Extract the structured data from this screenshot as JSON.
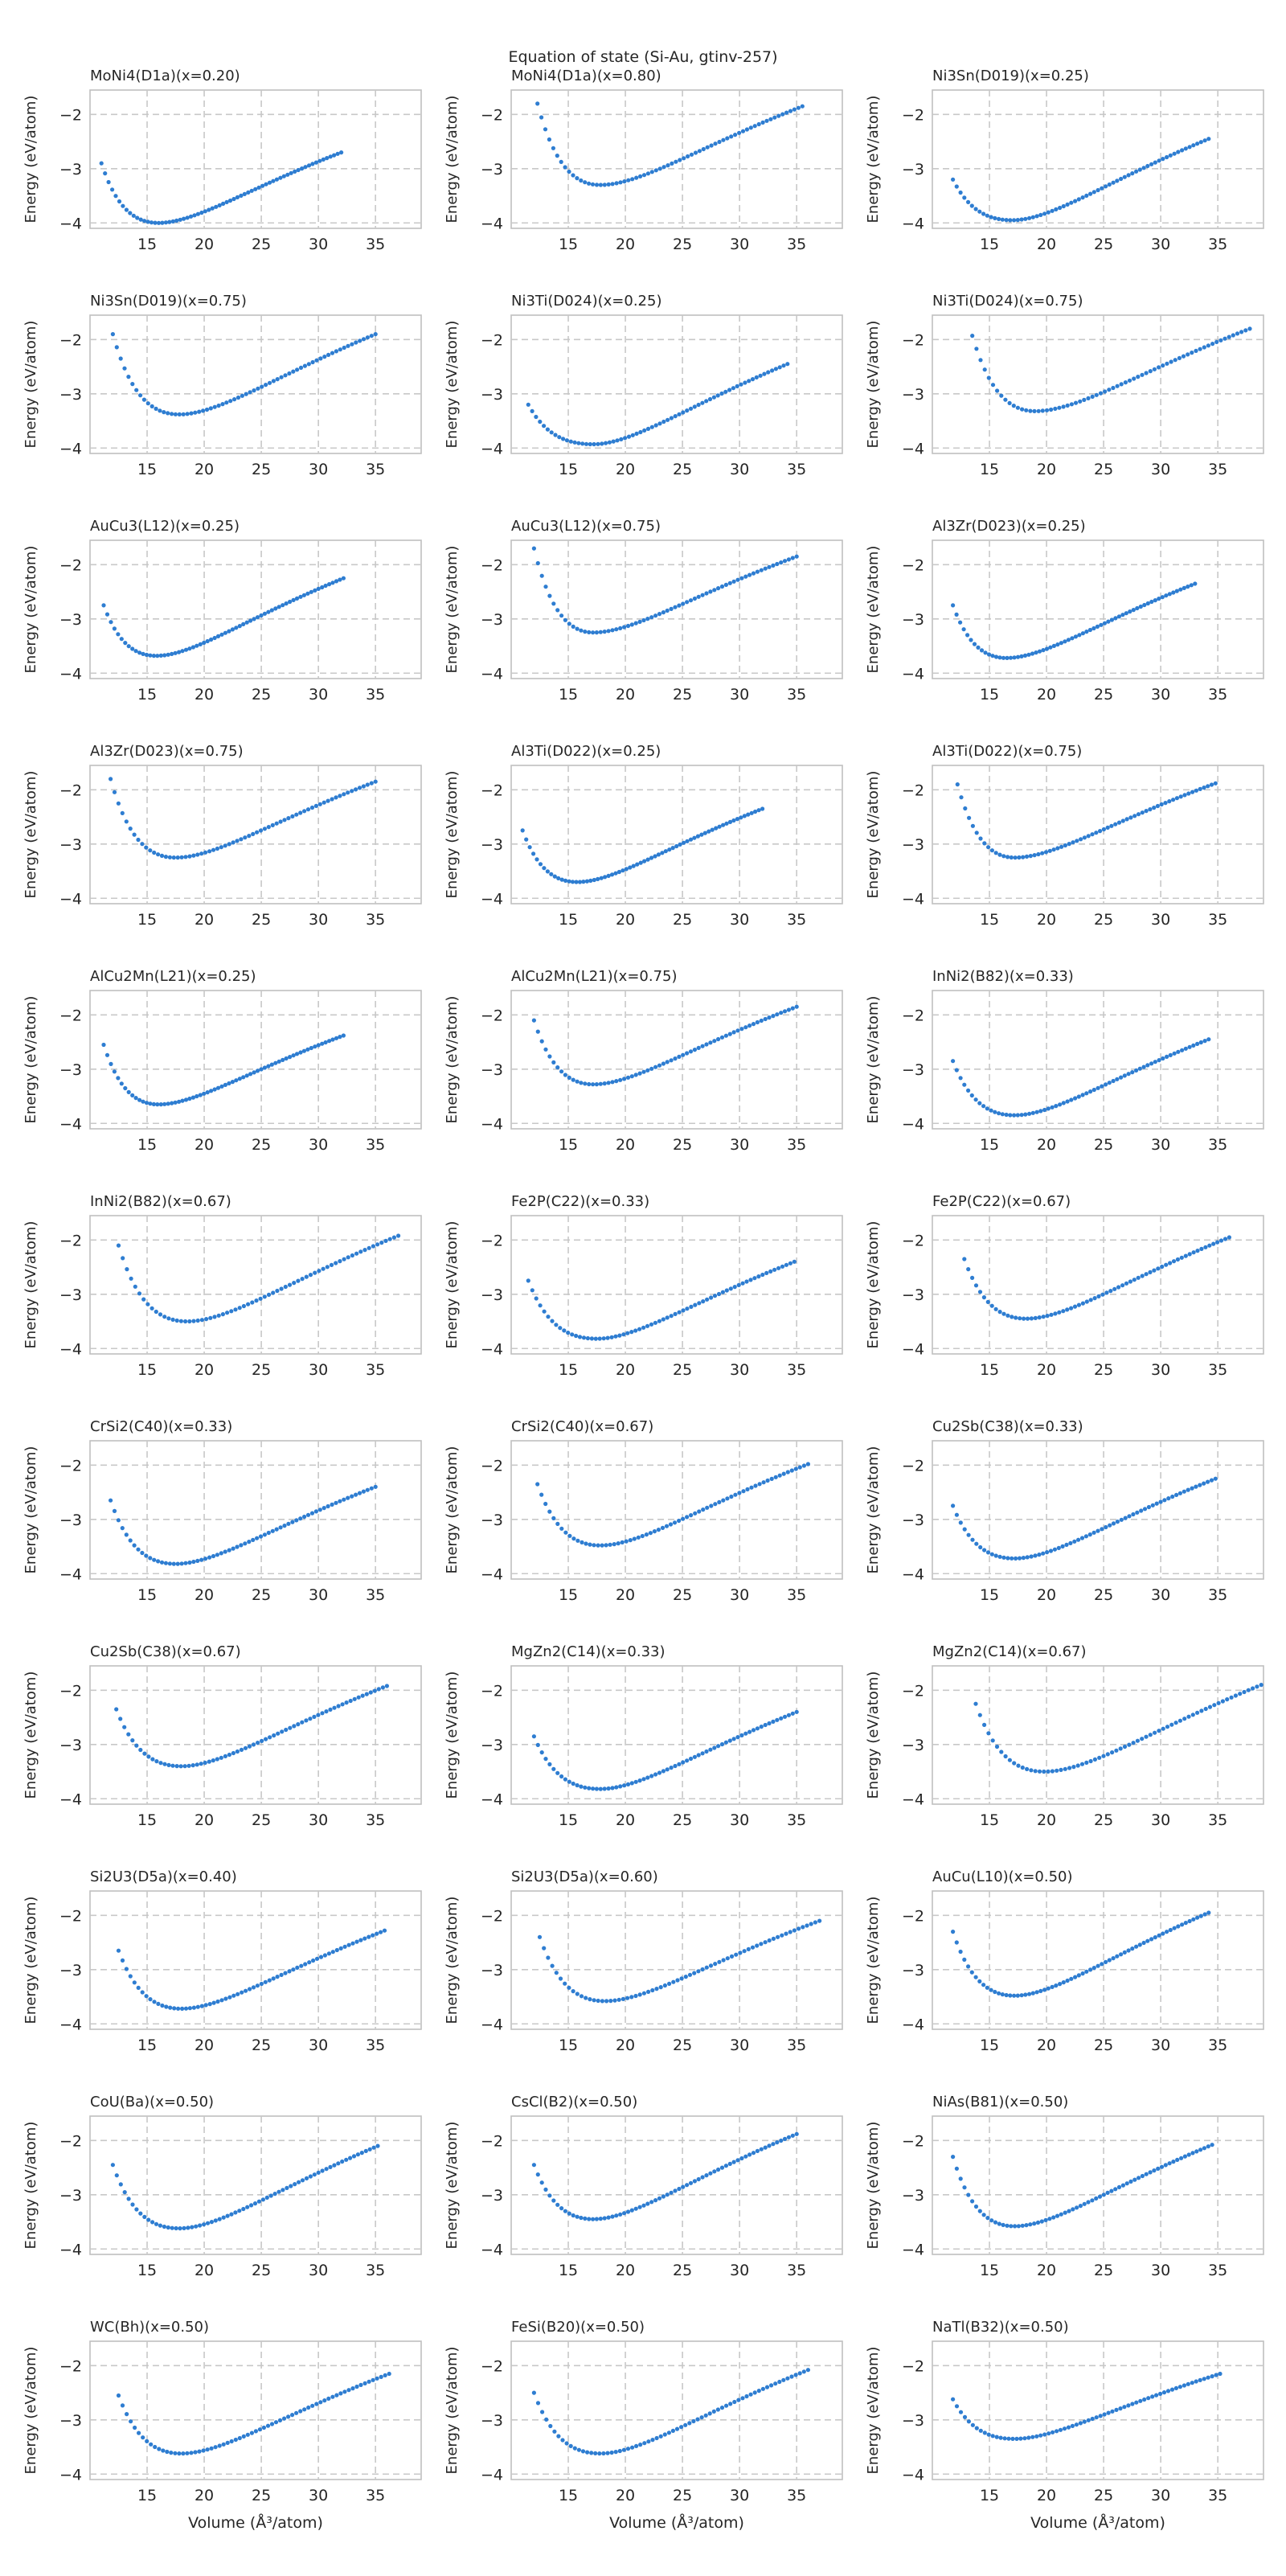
{
  "suptitle": "Equation of state (Si-Au, gtinv-257)",
  "chart_data": {
    "type": "scatter",
    "layout": {
      "rows": 11,
      "cols": 3
    },
    "xlabel": "Volume (Å³/atom)",
    "ylabel": "Energy (eV/atom)",
    "xlim": [
      10,
      39
    ],
    "ylim": [
      -4.1,
      -1.55
    ],
    "xticks": [
      15,
      20,
      25,
      30,
      35
    ],
    "yticks": [
      -4,
      -3,
      -2
    ],
    "grid": true,
    "marker_color": "#2e7dd1",
    "grid_color": "#c8c8c8",
    "axes_edge_color": "#c0c0c0",
    "panels": [
      {
        "title": "MoNi4(D1a)(x=0.20)",
        "v_min": 11.0,
        "v0": 16.0,
        "v_max": 32.0,
        "e0": -4.0,
        "e_left": -2.9,
        "e_right": -2.7
      },
      {
        "title": "MoNi4(D1a)(x=0.80)",
        "v_min": 12.3,
        "v0": 17.8,
        "v_max": 35.5,
        "e0": -3.3,
        "e_left": -1.8,
        "e_right": -1.85
      },
      {
        "title": "Ni3Sn(D019)(x=0.25)",
        "v_min": 11.8,
        "v0": 17.0,
        "v_max": 34.2,
        "e0": -3.95,
        "e_left": -3.2,
        "e_right": -2.45
      },
      {
        "title": "Ni3Sn(D019)(x=0.75)",
        "v_min": 12.0,
        "v0": 17.8,
        "v_max": 35.0,
        "e0": -3.38,
        "e_left": -1.9,
        "e_right": -1.9
      },
      {
        "title": "Ni3Ti(D024)(x=0.25)",
        "v_min": 11.5,
        "v0": 17.2,
        "v_max": 34.2,
        "e0": -3.93,
        "e_left": -3.2,
        "e_right": -2.45
      },
      {
        "title": "Ni3Ti(D024)(x=0.75)",
        "v_min": 13.5,
        "v0": 19.0,
        "v_max": 37.8,
        "e0": -3.32,
        "e_left": -1.93,
        "e_right": -1.8
      },
      {
        "title": "AuCu3(L12)(x=0.25)",
        "v_min": 11.2,
        "v0": 15.8,
        "v_max": 32.2,
        "e0": -3.68,
        "e_left": -2.75,
        "e_right": -2.25
      },
      {
        "title": "AuCu3(L12)(x=0.75)",
        "v_min": 12.0,
        "v0": 17.2,
        "v_max": 35.0,
        "e0": -3.25,
        "e_left": -1.7,
        "e_right": -1.85
      },
      {
        "title": "Al3Zr(D023)(x=0.25)",
        "v_min": 11.8,
        "v0": 16.5,
        "v_max": 33.0,
        "e0": -3.72,
        "e_left": -2.75,
        "e_right": -2.35
      },
      {
        "title": "Al3Zr(D023)(x=0.75)",
        "v_min": 11.8,
        "v0": 17.5,
        "v_max": 35.0,
        "e0": -3.25,
        "e_left": -1.8,
        "e_right": -1.85
      },
      {
        "title": "Al3Ti(D022)(x=0.25)",
        "v_min": 11.0,
        "v0": 15.8,
        "v_max": 32.0,
        "e0": -3.7,
        "e_left": -2.75,
        "e_right": -2.35
      },
      {
        "title": "Al3Ti(D022)(x=0.75)",
        "v_min": 12.2,
        "v0": 17.2,
        "v_max": 34.8,
        "e0": -3.25,
        "e_left": -1.9,
        "e_right": -1.88
      },
      {
        "title": "AlCu2Mn(L21)(x=0.25)",
        "v_min": 11.2,
        "v0": 16.0,
        "v_max": 32.2,
        "e0": -3.65,
        "e_left": -2.55,
        "e_right": -2.38
      },
      {
        "title": "AlCu2Mn(L21)(x=0.75)",
        "v_min": 12.0,
        "v0": 17.2,
        "v_max": 35.0,
        "e0": -3.28,
        "e_left": -2.1,
        "e_right": -1.85
      },
      {
        "title": "InNi2(B82)(x=0.33)",
        "v_min": 11.8,
        "v0": 17.2,
        "v_max": 34.2,
        "e0": -3.85,
        "e_left": -2.85,
        "e_right": -2.45
      },
      {
        "title": "InNi2(B82)(x=0.67)",
        "v_min": 12.5,
        "v0": 18.5,
        "v_max": 37.0,
        "e0": -3.5,
        "e_left": -2.1,
        "e_right": -1.92
      },
      {
        "title": "Fe2P(C22)(x=0.33)",
        "v_min": 11.5,
        "v0": 17.5,
        "v_max": 34.8,
        "e0": -3.82,
        "e_left": -2.75,
        "e_right": -2.4
      },
      {
        "title": "Fe2P(C22)(x=0.67)",
        "v_min": 12.8,
        "v0": 18.2,
        "v_max": 36.0,
        "e0": -3.45,
        "e_left": -2.35,
        "e_right": -1.95
      },
      {
        "title": "CrSi2(C40)(x=0.33)",
        "v_min": 11.8,
        "v0": 17.5,
        "v_max": 35.0,
        "e0": -3.82,
        "e_left": -2.65,
        "e_right": -2.4
      },
      {
        "title": "CrSi2(C40)(x=0.67)",
        "v_min": 12.3,
        "v0": 17.8,
        "v_max": 36.0,
        "e0": -3.48,
        "e_left": -2.35,
        "e_right": -1.98
      },
      {
        "title": "Cu2Sb(C38)(x=0.33)",
        "v_min": 11.8,
        "v0": 17.2,
        "v_max": 34.8,
        "e0": -3.72,
        "e_left": -2.75,
        "e_right": -2.25
      },
      {
        "title": "Cu2Sb(C38)(x=0.67)",
        "v_min": 12.3,
        "v0": 18.0,
        "v_max": 36.0,
        "e0": -3.4,
        "e_left": -2.35,
        "e_right": -1.92
      },
      {
        "title": "MgZn2(C14)(x=0.33)",
        "v_min": 12.0,
        "v0": 17.8,
        "v_max": 35.0,
        "e0": -3.82,
        "e_left": -2.85,
        "e_right": -2.4
      },
      {
        "title": "MgZn2(C14)(x=0.67)",
        "v_min": 13.8,
        "v0": 19.8,
        "v_max": 38.8,
        "e0": -3.5,
        "e_left": -2.25,
        "e_right": -1.9
      },
      {
        "title": "Si2U3(D5a)(x=0.40)",
        "v_min": 12.5,
        "v0": 18.0,
        "v_max": 35.8,
        "e0": -3.72,
        "e_left": -2.65,
        "e_right": -2.28
      },
      {
        "title": "Si2U3(D5a)(x=0.60)",
        "v_min": 12.5,
        "v0": 18.2,
        "v_max": 37.0,
        "e0": -3.58,
        "e_left": -2.4,
        "e_right": -2.1
      },
      {
        "title": "AuCu(L10)(x=0.50)",
        "v_min": 11.8,
        "v0": 17.2,
        "v_max": 34.2,
        "e0": -3.48,
        "e_left": -2.3,
        "e_right": -1.95
      },
      {
        "title": "CoU(Ba)(x=0.50)",
        "v_min": 12.0,
        "v0": 17.8,
        "v_max": 35.2,
        "e0": -3.62,
        "e_left": -2.45,
        "e_right": -2.1
      },
      {
        "title": "CsCl(B2)(x=0.50)",
        "v_min": 12.0,
        "v0": 17.2,
        "v_max": 35.0,
        "e0": -3.45,
        "e_left": -2.45,
        "e_right": -1.88
      },
      {
        "title": "NiAs(B81)(x=0.50)",
        "v_min": 11.8,
        "v0": 17.2,
        "v_max": 34.5,
        "e0": -3.58,
        "e_left": -2.3,
        "e_right": -2.08
      },
      {
        "title": "WC(Bh)(x=0.50)",
        "v_min": 12.5,
        "v0": 18.0,
        "v_max": 36.2,
        "e0": -3.62,
        "e_left": -2.55,
        "e_right": -2.15
      },
      {
        "title": "FeSi(B20)(x=0.50)",
        "v_min": 12.0,
        "v0": 17.8,
        "v_max": 36.0,
        "e0": -3.62,
        "e_left": -2.5,
        "e_right": -2.08
      },
      {
        "title": "NaTl(B32)(x=0.50)",
        "v_min": 11.8,
        "v0": 17.2,
        "v_max": 35.2,
        "e0": -3.35,
        "e_left": -2.62,
        "e_right": -2.15
      }
    ]
  }
}
